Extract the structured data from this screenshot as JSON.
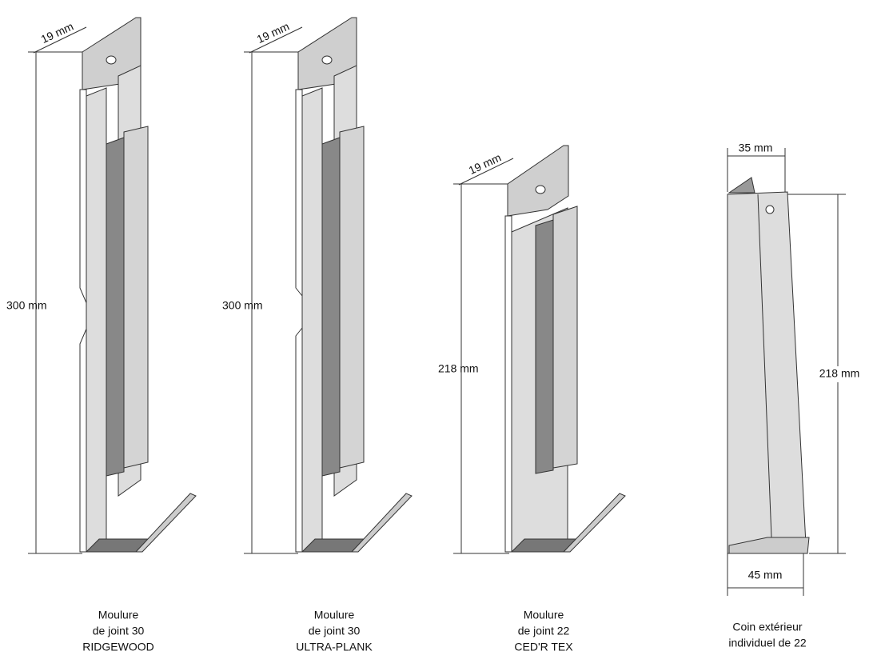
{
  "items": [
    {
      "width": "19 mm",
      "height": "300 mm",
      "caption": [
        "Moulure",
        "de joint 30",
        "RIDGEWOOD"
      ]
    },
    {
      "width": "19 mm",
      "height": "300 mm",
      "caption": [
        "Moulure",
        "de joint 30",
        "ULTRA-PLANK"
      ]
    },
    {
      "width": "19 mm",
      "height": "218 mm",
      "caption": [
        "Moulure",
        "de joint 22",
        "CED'R TEX"
      ]
    },
    {
      "top_width": "35 mm",
      "height": "218 mm",
      "bottom_width": "45 mm",
      "caption": [
        "Coin extérieur",
        "individuel de 22"
      ]
    }
  ]
}
